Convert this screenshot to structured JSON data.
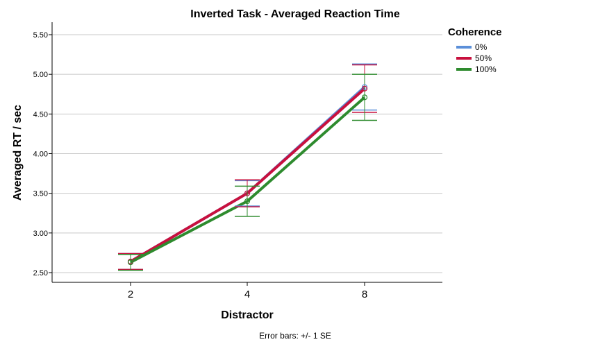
{
  "chart_data": {
    "type": "line",
    "title": "Inverted Task - Averaged Reaction Time",
    "xlabel": "Distractor",
    "ylabel": "Averaged RT / sec",
    "categories": [
      "2",
      "4",
      "8"
    ],
    "ylim": [
      2.45,
      5.6
    ],
    "yticks": [
      2.5,
      3.0,
      3.5,
      4.0,
      4.5,
      5.0,
      5.5
    ],
    "ytick_labels": [
      "2.50",
      "3.00",
      "3.50",
      "4.00",
      "4.50",
      "5.00",
      "5.50"
    ],
    "grid": true,
    "legend": {
      "title": "Coherence",
      "placement": "right"
    },
    "series": [
      {
        "name": "0%",
        "color": "#5b8fd9",
        "values": [
          2.64,
          3.5,
          4.84
        ],
        "error": [
          0.1,
          0.16,
          0.29
        ]
      },
      {
        "name": "50%",
        "color": "#c8103e",
        "values": [
          2.64,
          3.5,
          4.82
        ],
        "error": [
          0.1,
          0.17,
          0.3
        ]
      },
      {
        "name": "100%",
        "color": "#2e8b2e",
        "values": [
          2.63,
          3.4,
          4.71
        ],
        "error": [
          0.1,
          0.19,
          0.29
        ]
      }
    ],
    "annotation": "Error bars: +/- 1 SE"
  }
}
